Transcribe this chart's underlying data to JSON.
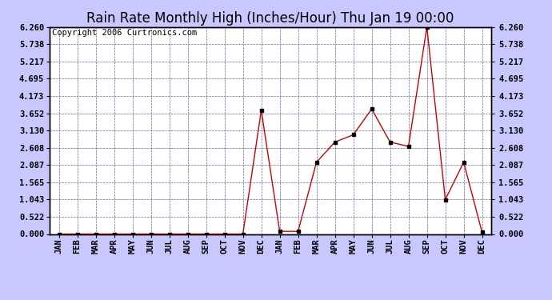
{
  "title": "Rain Rate Monthly High (Inches/Hour) Thu Jan 19 00:00",
  "copyright": "Copyright 2006 Curtronics.com",
  "labels": [
    "JAN",
    "FEB",
    "MAR",
    "APR",
    "MAY",
    "JUN",
    "JUL",
    "AUG",
    "SEP",
    "OCT",
    "NOV",
    "DEC",
    "JAN",
    "FEB",
    "MAR",
    "APR",
    "MAY",
    "JUN",
    "JUL",
    "AUG",
    "SEP",
    "OCT",
    "NOV",
    "DEC"
  ],
  "values": [
    0.0,
    0.0,
    0.0,
    0.0,
    0.0,
    0.0,
    0.0,
    0.0,
    0.0,
    0.0,
    0.0,
    3.74,
    0.08,
    0.08,
    2.17,
    2.78,
    3.0,
    3.78,
    2.78,
    2.65,
    6.26,
    1.04,
    2.17,
    0.05
  ],
  "yticks": [
    0.0,
    0.522,
    1.043,
    1.565,
    2.087,
    2.608,
    3.13,
    3.652,
    4.173,
    4.695,
    5.217,
    5.738,
    6.26
  ],
  "line_color": "#cc0000",
  "marker_color": "#000000",
  "bg_color": "#c8c8ff",
  "plot_bg_color": "#ffffff",
  "grid_color": "#4444cc",
  "title_fontsize": 12,
  "copyright_fontsize": 7.5,
  "tick_fontsize": 7.5,
  "ymax": 6.26,
  "ymin": 0.0
}
